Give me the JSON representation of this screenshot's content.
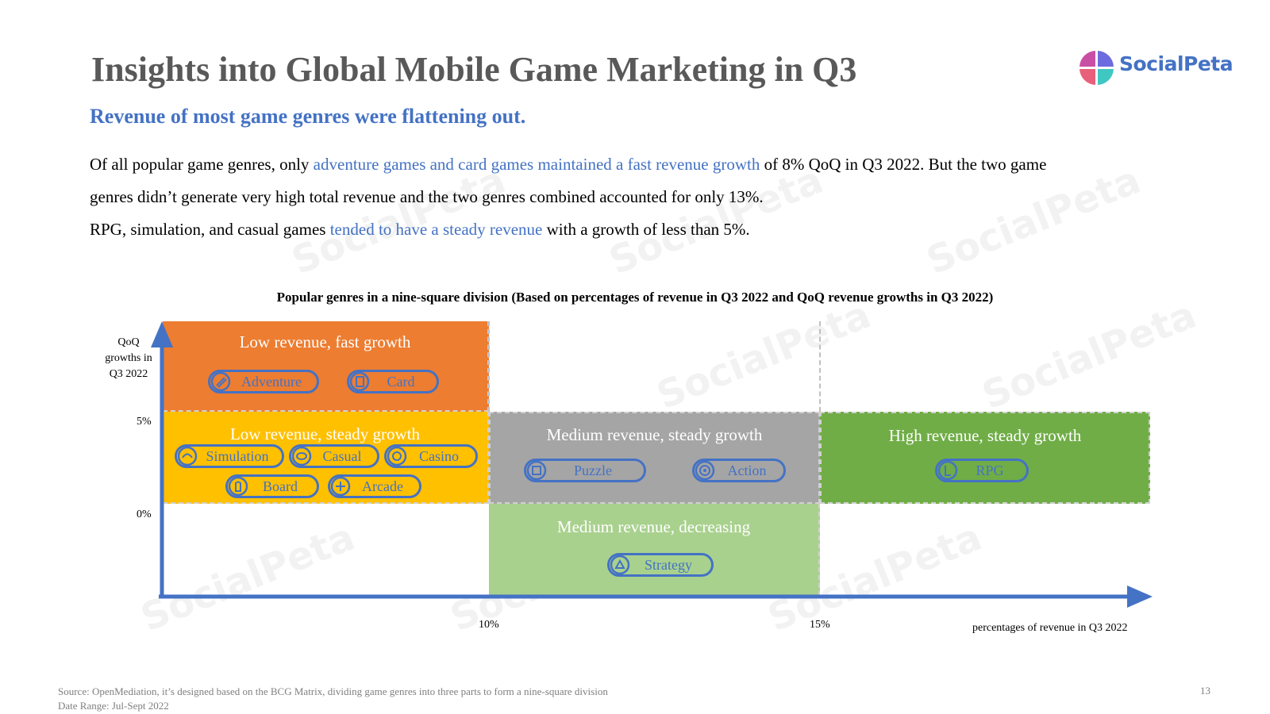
{
  "title": "Insights into Global Mobile Game Marketing in Q3",
  "subtitle": "Revenue of most game genres were flattening out.",
  "logo": {
    "text": "SocialPeta"
  },
  "body": {
    "line1_a": "Of all popular game genres, only ",
    "line1_hl": "adventure games and card games maintained a fast revenue growth",
    "line1_b": " of 8% QoQ in Q3 2022. But the two game",
    "line2": "genres didn’t generate very high total revenue and the two genres combined accounted for only 13%.",
    "line3_a": "RPG, simulation, and casual games ",
    "line3_hl": "tended to have a steady revenue",
    "line3_b": " with a growth of less than 5%."
  },
  "chart": {
    "title": "Popular genres in a nine-square division (Based on percentages of revenue in Q3 2022 and QoQ revenue growths in Q3 2022)",
    "y_axis_label": "QoQ growths in Q3 2022",
    "x_axis_label": "percentages of revenue in Q3 2022",
    "y_ticks": [
      "5%",
      "0%"
    ],
    "x_ticks": [
      "10%",
      "15%"
    ],
    "colors": {
      "orange": "#ed7d31",
      "yellow": "#ffc000",
      "gray": "#a5a5a5",
      "green": "#70ad47",
      "light_green": "#a9d18e",
      "accent": "#4472c4"
    },
    "cells": [
      {
        "title": "Low revenue, fast growth",
        "genres": [
          "Adventure",
          "Card"
        ]
      },
      {
        "title": "Low revenue, steady growth",
        "genres": [
          "Simulation",
          "Casual",
          "Casino",
          "Board",
          "Arcade"
        ]
      },
      {
        "title": "Medium revenue, steady growth",
        "genres": [
          "Puzzle",
          "Action"
        ]
      },
      {
        "title": "High revenue, steady growth",
        "genres": [
          "RPG"
        ]
      },
      {
        "title": "Medium revenue, decreasing",
        "genres": [
          "Strategy"
        ]
      }
    ]
  },
  "footer": {
    "source": "Source: OpenMediation, it’s designed based on the BCG Matrix, dividing game genres into three parts to form a nine-square division",
    "date_range": "Date Range: Jul-Sept 2022",
    "page_number": "13"
  }
}
